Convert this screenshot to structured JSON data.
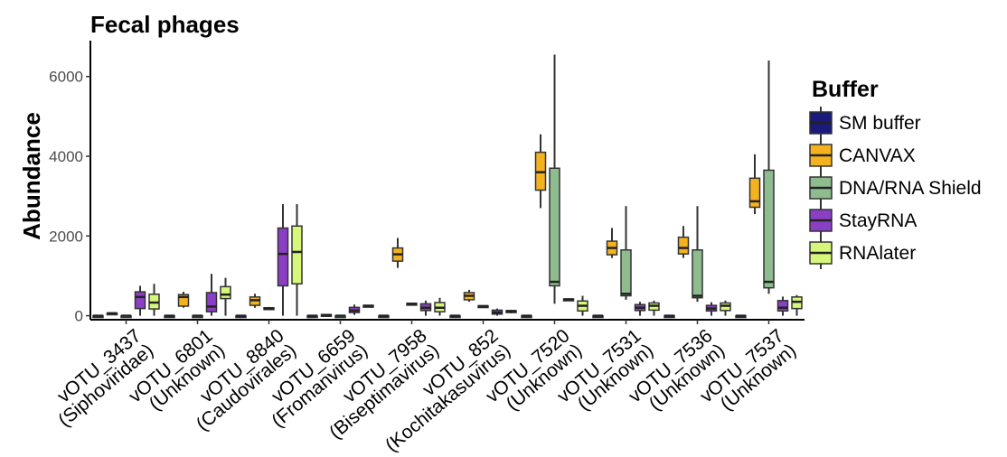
{
  "chart_data": {
    "type": "boxplot",
    "title": "Fecal phages",
    "xlabel": "",
    "ylabel": "Abundance",
    "ylim": [
      -100,
      6900
    ],
    "yticks": [
      0,
      2000,
      4000,
      6000
    ],
    "yticklabels": [
      "0",
      "2000",
      "4000",
      "6000"
    ],
    "grid": false,
    "legend_position": "right",
    "legend": {
      "title": "Buffer",
      "entries": [
        {
          "name": "SM buffer",
          "color": "#1a1a7a"
        },
        {
          "name": "CANVAX",
          "color": "#f5b21f"
        },
        {
          "name": "DNA/RNA Shield",
          "color": "#8fbc8f"
        },
        {
          "name": "StayRNA",
          "color": "#8b3fc4"
        },
        {
          "name": "RNAlater",
          "color": "#d7f77a"
        }
      ]
    },
    "categories": [
      {
        "line1": "vOTU_3437",
        "line2": "(Siphoviridae)"
      },
      {
        "line1": "vOTU_6801",
        "line2": "(Unknown)"
      },
      {
        "line1": "vOTU_8840",
        "line2": "(Caudovirales)"
      },
      {
        "line1": "vOTU_6659",
        "line2": "(Fromanvirus)"
      },
      {
        "line1": "vOTU_7958",
        "line2": "(Biseptimavirus)"
      },
      {
        "line1": "vOTU_852",
        "line2": "(Kochitakasuvirus)"
      },
      {
        "line1": "vOTU_7520",
        "line2": "(Unknown)"
      },
      {
        "line1": "vOTU_7531",
        "line2": "(Unknown)"
      },
      {
        "line1": "vOTU_7536",
        "line2": "(Unknown)"
      },
      {
        "line1": "vOTU_7537",
        "line2": "(Unknown)"
      }
    ],
    "series": [
      {
        "name": "SM buffer",
        "color": "#1a1a7a",
        "boxes": [
          [
            0,
            0,
            0,
            0,
            0
          ],
          [
            0,
            0,
            0,
            0,
            0
          ],
          [
            0,
            0,
            0,
            0,
            0
          ],
          [
            0,
            0,
            0,
            0,
            0
          ],
          [
            0,
            0,
            0,
            0,
            0
          ],
          [
            0,
            0,
            0,
            0,
            0
          ],
          [
            0,
            0,
            0,
            0,
            0
          ],
          [
            0,
            0,
            0,
            0,
            0
          ],
          [
            0,
            0,
            0,
            0,
            0
          ],
          [
            0,
            0,
            0,
            0,
            0
          ]
        ]
      },
      {
        "name": "CANVAX",
        "color": "#f5b21f",
        "boxes": [
          [
            30,
            50,
            60,
            70,
            90
          ],
          [
            200,
            240,
            470,
            530,
            600
          ],
          [
            200,
            260,
            390,
            470,
            550
          ],
          [
            0,
            10,
            20,
            30,
            40
          ],
          [
            1200,
            1370,
            1540,
            1700,
            1950
          ],
          [
            350,
            400,
            500,
            580,
            650
          ],
          [
            2700,
            3150,
            3600,
            4100,
            4550
          ],
          [
            1450,
            1530,
            1700,
            1870,
            2200
          ],
          [
            1450,
            1550,
            1700,
            1970,
            2250
          ],
          [
            2550,
            2720,
            2870,
            3450,
            4050
          ]
        ]
      },
      {
        "name": "DNA/RNA Shield",
        "color": "#8fbc8f",
        "boxes": [
          [
            0,
            0,
            0,
            0,
            0
          ],
          [
            0,
            0,
            0,
            0,
            0
          ],
          [
            150,
            170,
            180,
            200,
            220
          ],
          [
            0,
            0,
            0,
            0,
            0
          ],
          [
            280,
            290,
            300,
            310,
            320
          ],
          [
            230,
            240,
            240,
            250,
            260
          ],
          [
            300,
            750,
            850,
            3700,
            6550
          ],
          [
            400,
            500,
            550,
            1650,
            2750
          ],
          [
            350,
            450,
            500,
            1650,
            2750
          ],
          [
            550,
            700,
            850,
            3650,
            6400
          ]
        ]
      },
      {
        "name": "StayRNA",
        "color": "#8b3fc4",
        "boxes": [
          [
            0,
            180,
            470,
            600,
            750
          ],
          [
            0,
            100,
            230,
            580,
            1050
          ],
          [
            0,
            750,
            1550,
            2200,
            2800
          ],
          [
            20,
            80,
            130,
            210,
            280
          ],
          [
            0,
            130,
            200,
            300,
            380
          ],
          [
            0,
            40,
            80,
            140,
            180
          ],
          [
            380,
            390,
            410,
            420,
            430
          ],
          [
            0,
            130,
            200,
            280,
            350
          ],
          [
            0,
            120,
            180,
            260,
            340
          ],
          [
            0,
            120,
            200,
            380,
            480
          ]
        ]
      },
      {
        "name": "RNAlater",
        "color": "#d7f77a",
        "boxes": [
          [
            0,
            170,
            330,
            540,
            800
          ],
          [
            0,
            430,
            530,
            730,
            950
          ],
          [
            0,
            800,
            1600,
            2250,
            2800
          ],
          [
            230,
            240,
            250,
            260,
            270
          ],
          [
            0,
            100,
            200,
            330,
            450
          ],
          [
            60,
            80,
            110,
            130,
            150
          ],
          [
            0,
            120,
            250,
            370,
            500
          ],
          [
            0,
            140,
            250,
            320,
            380
          ],
          [
            0,
            130,
            250,
            320,
            380
          ],
          [
            0,
            180,
            350,
            470,
            520
          ]
        ]
      }
    ]
  }
}
